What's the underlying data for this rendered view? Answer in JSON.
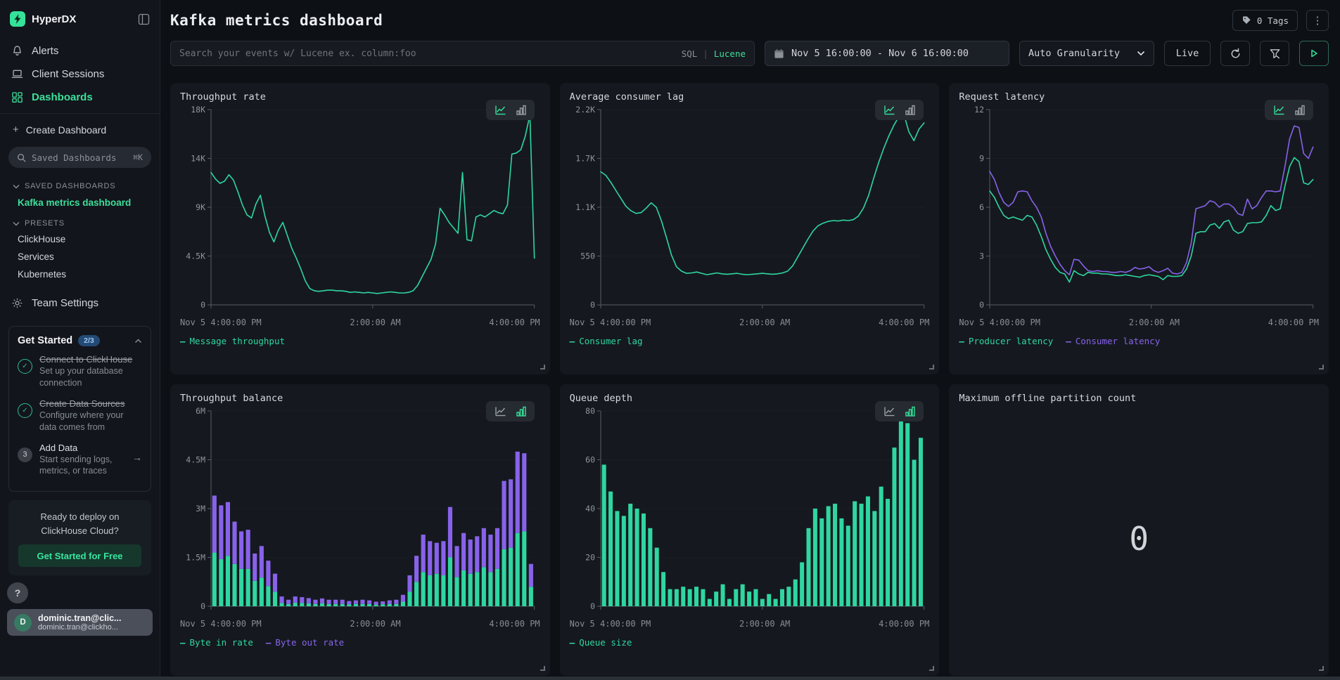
{
  "app": {
    "brand": "HyperDX"
  },
  "sidebar": {
    "nav": [
      {
        "label": "Alerts"
      },
      {
        "label": "Client Sessions"
      },
      {
        "label": "Dashboards"
      }
    ],
    "create_dashboard": "Create Dashboard",
    "search": {
      "placeholder": "Saved Dashboards",
      "shortcut": "⌘K"
    },
    "saved": {
      "header": "SAVED DASHBOARDS",
      "item": "Kafka metrics dashboard"
    },
    "presets": {
      "header": "PRESETS",
      "items": [
        "ClickHouse",
        "Services",
        "Kubernetes"
      ]
    },
    "team_settings": "Team Settings",
    "get_started": {
      "title": "Get Started",
      "badge": "2/3",
      "steps": [
        {
          "title": "Connect to ClickHouse",
          "desc": "Set up your database connection",
          "mark": "✓"
        },
        {
          "title": "Create Data Sources",
          "desc": "Configure where your data comes from",
          "mark": "✓"
        },
        {
          "title": "Add Data",
          "desc": "Start sending logs, metrics, or traces",
          "mark": "3",
          "arrow": "→"
        }
      ]
    },
    "promo": {
      "line1": "Ready to deploy on",
      "line2": "ClickHouse Cloud?",
      "cta": "Get Started for Free"
    },
    "help": "?",
    "user": {
      "initial": "D",
      "name": "dominic.tran@clic...",
      "email": "dominic.tran@clickho..."
    }
  },
  "header": {
    "title": "Kafka metrics dashboard",
    "tags_button": "0 Tags",
    "menu": "⋮"
  },
  "toolbar": {
    "search_placeholder": "Search your events w/ Lucene ex. column:foo",
    "lang_sql": "SQL",
    "lang_sep": "|",
    "lang_lucene": "Lucene",
    "date_range": "Nov 5 16:00:00 - Nov 6 16:00:00",
    "granularity": "Auto Granularity",
    "live": "Live"
  },
  "colors": {
    "accent_green": "#2fd6a0",
    "accent_purple": "#8862ea",
    "axis": "#565c64",
    "grid": "#1a1e24"
  },
  "chart_data": [
    {
      "type": "line",
      "title": "Throughput rate",
      "active_view": "line",
      "ylim": [
        0,
        18
      ],
      "yticks": [
        {
          "v": 0,
          "label": "0"
        },
        {
          "v": 4.5,
          "label": "4.5K"
        },
        {
          "v": 9,
          "label": "9K"
        },
        {
          "v": 13.5,
          "label": "14K"
        },
        {
          "v": 18,
          "label": "18K"
        }
      ],
      "xticks": [
        "Nov 5 4:00:00 PM",
        "2:00:00 AM",
        "4:00:00 PM"
      ],
      "series": [
        {
          "name": "Message throughput",
          "color": "#2fd6a0",
          "values": [
            12.2,
            11.6,
            11.2,
            11.4,
            12.0,
            11.5,
            10.4,
            9.2,
            8.3,
            8.0,
            9.3,
            10.1,
            8.2,
            6.7,
            5.8,
            6.9,
            7.6,
            6.4,
            5.2,
            4.3,
            3.3,
            2.2,
            1.5,
            1.3,
            1.25,
            1.3,
            1.35,
            1.35,
            1.3,
            1.3,
            1.25,
            1.15,
            1.2,
            1.15,
            1.1,
            1.15,
            1.1,
            1.05,
            1.1,
            1.15,
            1.2,
            1.15,
            1.1,
            1.1,
            1.15,
            1.3,
            1.8,
            2.6,
            3.4,
            4.2,
            5.6,
            8.9,
            8.3,
            7.6,
            7.1,
            6.6,
            12.2,
            6.0,
            5.9,
            8.1,
            8.3,
            8.1,
            8.4,
            8.7,
            8.5,
            8.4,
            9.2,
            13.9,
            14.0,
            14.3,
            15.6,
            17.5,
            4.3
          ]
        }
      ]
    },
    {
      "type": "line",
      "title": "Average consumer lag",
      "active_view": "line",
      "ylim": [
        0,
        2200
      ],
      "yticks": [
        {
          "v": 0,
          "label": "0"
        },
        {
          "v": 550,
          "label": "550"
        },
        {
          "v": 1100,
          "label": "1.1K"
        },
        {
          "v": 1650,
          "label": "1.7K"
        },
        {
          "v": 2200,
          "label": "2.2K"
        }
      ],
      "xticks": [
        "Nov 5 4:00:00 PM",
        "2:00:00 AM",
        "4:00:00 PM"
      ],
      "series": [
        {
          "name": "Consumer lag",
          "color": "#2fd6a0",
          "values": [
            1500,
            1460,
            1380,
            1290,
            1200,
            1110,
            1060,
            1030,
            1040,
            1090,
            1150,
            1100,
            950,
            760,
            560,
            430,
            380,
            355,
            360,
            370,
            355,
            340,
            350,
            360,
            350,
            345,
            350,
            355,
            345,
            340,
            345,
            350,
            355,
            350,
            345,
            350,
            360,
            380,
            440,
            540,
            640,
            740,
            830,
            890,
            920,
            940,
            950,
            945,
            955,
            950,
            960,
            1000,
            1090,
            1230,
            1420,
            1600,
            1760,
            1900,
            2020,
            2120,
            2150,
            1950,
            1850,
            1980,
            2050
          ]
        }
      ]
    },
    {
      "type": "line",
      "title": "Request latency",
      "active_view": "line",
      "ylim": [
        0,
        12
      ],
      "yticks": [
        {
          "v": 0,
          "label": "0"
        },
        {
          "v": 3,
          "label": "3"
        },
        {
          "v": 6,
          "label": "6"
        },
        {
          "v": 9,
          "label": "9"
        },
        {
          "v": 12,
          "label": "12"
        }
      ],
      "xticks": [
        "Nov 5 4:00:00 PM",
        "2:00:00 AM",
        "4:00:00 PM"
      ],
      "series": [
        {
          "name": "Producer latency",
          "color": "#2fd6a0",
          "values": [
            7.0,
            6.6,
            6.0,
            5.5,
            5.3,
            5.4,
            5.3,
            5.2,
            5.5,
            5.4,
            4.9,
            4.2,
            3.4,
            2.8,
            2.3,
            2.0,
            1.9,
            1.4,
            2.1,
            1.9,
            1.8,
            2.0,
            1.95,
            1.95,
            1.9,
            1.9,
            1.85,
            1.8,
            1.8,
            1.85,
            1.8,
            1.75,
            1.7,
            1.8,
            1.85,
            1.8,
            1.75,
            1.55,
            1.8,
            1.75,
            1.75,
            1.8,
            2.2,
            3.0,
            4.4,
            4.5,
            4.5,
            4.9,
            5.0,
            4.7,
            5.1,
            5.2,
            4.6,
            4.4,
            4.5,
            5.0,
            5.05,
            5.05,
            5.1,
            5.5,
            6.1,
            5.8,
            5.9,
            7.3,
            8.5,
            9.05,
            8.8,
            7.5,
            7.4,
            7.7
          ]
        },
        {
          "name": "Consumer latency",
          "color": "#8862ea",
          "values": [
            8.2,
            7.7,
            6.9,
            6.3,
            6.05,
            6.3,
            6.95,
            7.0,
            6.95,
            6.4,
            6.0,
            5.4,
            4.4,
            3.6,
            3.0,
            2.5,
            2.1,
            1.85,
            2.8,
            2.75,
            2.4,
            2.1,
            2.05,
            2.1,
            2.05,
            2.05,
            2.0,
            2.0,
            2.05,
            2.0,
            2.1,
            2.3,
            2.2,
            2.25,
            2.35,
            2.1,
            2.0,
            2.1,
            2.25,
            1.95,
            1.9,
            2.0,
            2.6,
            3.8,
            5.9,
            6.0,
            6.1,
            6.4,
            6.3,
            6.0,
            6.2,
            6.2,
            6.0,
            5.6,
            5.5,
            6.5,
            5.9,
            6.1,
            6.6,
            7.0,
            7.0,
            6.95,
            7.0,
            8.5,
            10.2,
            11.0,
            10.9,
            9.3,
            9.0,
            9.7
          ]
        }
      ]
    },
    {
      "type": "stacked-bar",
      "title": "Throughput balance",
      "active_view": "bar",
      "ylim": [
        0,
        6
      ],
      "yticks": [
        {
          "v": 0,
          "label": "0"
        },
        {
          "v": 1.5,
          "label": "1.5M"
        },
        {
          "v": 3,
          "label": "3M"
        },
        {
          "v": 4.5,
          "label": "4.5M"
        },
        {
          "v": 6,
          "label": "6M"
        }
      ],
      "xticks": [
        "Nov 5 4:00:00 PM",
        "2:00:00 AM",
        "4:00:00 PM"
      ],
      "series": [
        {
          "name": "Byte in rate",
          "color": "#2fd6a0",
          "values": [
            1.65,
            1.45,
            1.55,
            1.3,
            1.15,
            1.15,
            0.78,
            0.88,
            0.62,
            0.45,
            0.1,
            0.07,
            0.11,
            0.1,
            0.09,
            0.07,
            0.09,
            0.07,
            0.07,
            0.07,
            0.06,
            0.07,
            0.07,
            0.07,
            0.05,
            0.06,
            0.07,
            0.07,
            0.14,
            0.45,
            0.75,
            1.05,
            0.95,
            1.0,
            0.95,
            1.5,
            0.9,
            1.1,
            1.0,
            1.05,
            1.2,
            1.05,
            1.15,
            1.75,
            1.8,
            2.25,
            2.3,
            0.6
          ]
        },
        {
          "name": "Byte out rate",
          "color": "#8862ea",
          "values": [
            1.75,
            1.65,
            1.65,
            1.3,
            1.15,
            1.2,
            0.84,
            0.97,
            0.78,
            0.55,
            0.2,
            0.13,
            0.19,
            0.18,
            0.16,
            0.13,
            0.15,
            0.13,
            0.13,
            0.13,
            0.1,
            0.11,
            0.13,
            0.11,
            0.09,
            0.09,
            0.11,
            0.13,
            0.21,
            0.5,
            0.8,
            1.15,
            1.05,
            0.95,
            1.05,
            1.55,
            0.95,
            1.15,
            1.05,
            1.1,
            1.2,
            1.15,
            1.25,
            2.1,
            2.1,
            2.5,
            2.4,
            0.7
          ]
        }
      ]
    },
    {
      "type": "bar",
      "title": "Queue depth",
      "active_view": "bar",
      "ylim": [
        0,
        80
      ],
      "yticks": [
        {
          "v": 0,
          "label": "0"
        },
        {
          "v": 20,
          "label": "20"
        },
        {
          "v": 40,
          "label": "40"
        },
        {
          "v": 60,
          "label": "60"
        },
        {
          "v": 80,
          "label": "80"
        }
      ],
      "xticks": [
        "Nov 5 4:00:00 PM",
        "2:00:00 AM",
        "4:00:00 PM"
      ],
      "series": [
        {
          "name": "Queue size",
          "color": "#2fd6a0",
          "values": [
            58,
            47,
            39,
            37,
            42,
            40,
            38,
            32,
            24,
            14,
            7,
            7,
            8,
            7,
            8,
            7,
            3,
            6,
            9,
            3,
            7,
            9,
            6,
            7,
            3,
            5,
            3,
            7,
            8,
            11,
            18,
            32,
            40,
            36,
            41,
            42,
            36,
            33,
            43,
            42,
            45,
            39,
            49,
            44,
            65,
            76,
            75,
            60,
            69
          ]
        }
      ]
    },
    {
      "type": "number",
      "title": "Maximum offline partition count",
      "value": "0"
    }
  ]
}
